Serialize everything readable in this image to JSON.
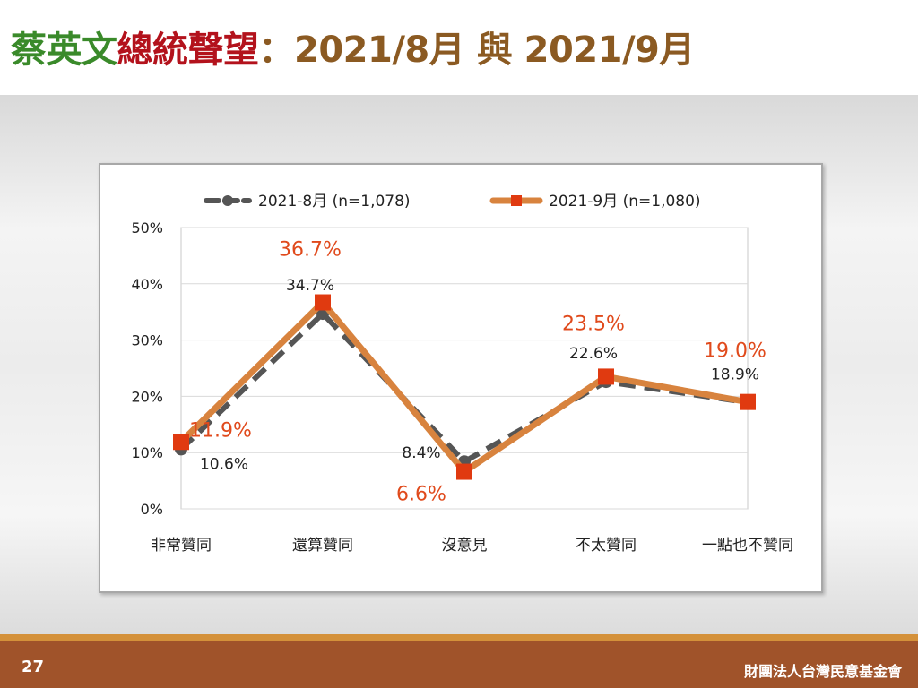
{
  "title": {
    "part1": "蔡英文",
    "part2": "總統聲望",
    "part3": "：2021/8月 與 2021/9月",
    "colors": [
      "#3a8a2a",
      "#b3121c",
      "#8b5a22"
    ]
  },
  "footer": {
    "page_number": "27",
    "organization": "財團法人台灣民意基金會"
  },
  "chart_data": {
    "type": "line",
    "categories": [
      "非常贊同",
      "還算贊同",
      "沒意見",
      "不太贊同",
      "一點也不贊同"
    ],
    "series": [
      {
        "name": "2021-8月  (n=1,078)",
        "values": [
          10.6,
          34.7,
          8.4,
          22.6,
          18.9
        ],
        "labels": [
          "10.6%",
          "34.7%",
          "8.4%",
          "22.6%",
          "18.9%"
        ],
        "color": "#555555",
        "style": "dashed",
        "marker": "circle"
      },
      {
        "name": "2021-9月  (n=1,080)",
        "values": [
          11.9,
          36.7,
          6.6,
          23.5,
          19.0
        ],
        "labels": [
          "11.9%",
          "36.7%",
          "6.6%",
          "23.5%",
          "19.0%"
        ],
        "color": "#d8833e",
        "marker_color": "#e03a10",
        "label_color": "#e04a1c",
        "style": "solid",
        "marker": "square"
      }
    ],
    "y_ticks": [
      "0%",
      "10%",
      "20%",
      "30%",
      "40%",
      "50%"
    ],
    "ylim": [
      0,
      50
    ],
    "grid": true,
    "legend_position": "top"
  }
}
